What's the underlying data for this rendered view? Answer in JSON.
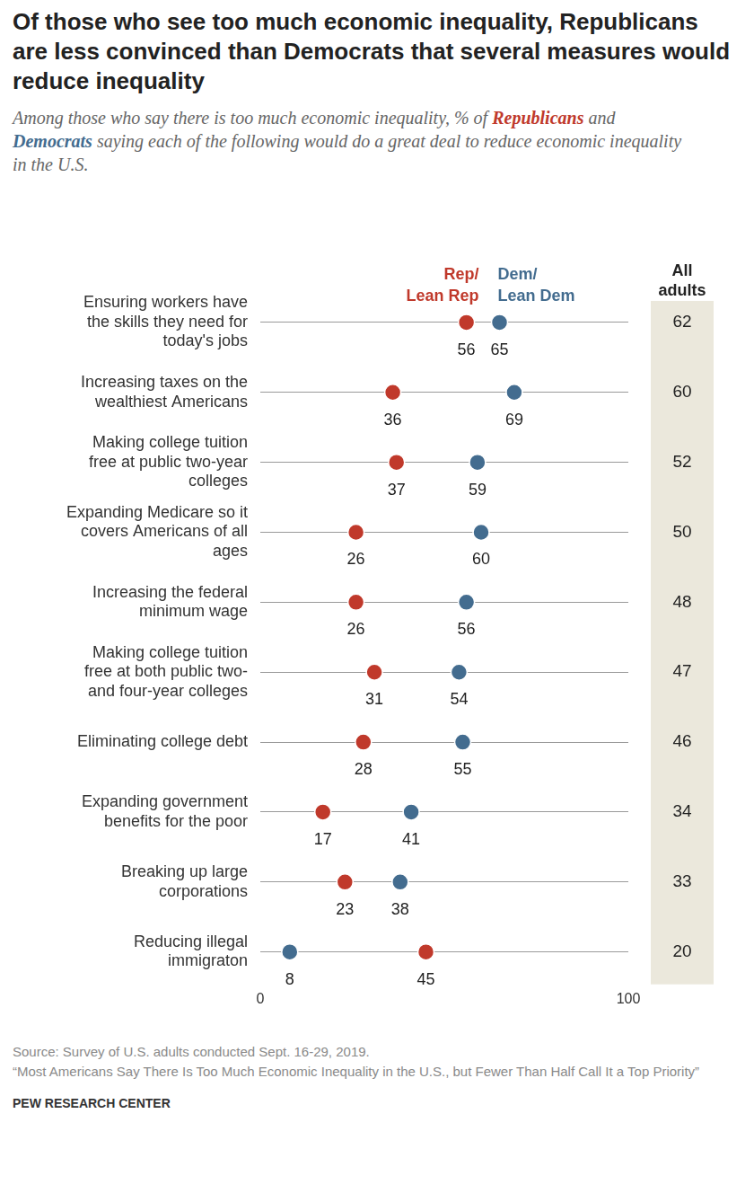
{
  "chart_data": {
    "type": "dot",
    "orientation": "horizontal",
    "title": "Of those who see too much economic inequality, Republicans are less convinced than Democrats that several measures would reduce inequality",
    "subtitle": [
      {
        "text": "Among those who say there is too much economic inequality, % of "
      },
      {
        "text": "Republicans",
        "color": "#c0392b"
      },
      {
        "text": " and "
      },
      {
        "text": "Democrats",
        "color": "#436c8f"
      },
      {
        "text": " saying each of the following would do a great deal to reduce economic inequality in the U.S."
      }
    ],
    "categories": [
      [
        "Ensuring workers have",
        "the skills they need for",
        "today's jobs"
      ],
      [
        "Increasing taxes on the",
        "wealthiest Americans"
      ],
      [
        "Making college tuition",
        "free at public two-year",
        "colleges"
      ],
      [
        "Expanding Medicare so it",
        "covers Americans of all",
        "ages"
      ],
      [
        "Increasing the federal",
        "minimum wage"
      ],
      [
        "Making college tuition",
        "free at both public two-",
        "and four-year colleges"
      ],
      [
        "Eliminating college debt"
      ],
      [
        "Expanding government",
        "benefits for the poor"
      ],
      [
        "Breaking up large",
        "corporations"
      ],
      [
        "Reducing illegal",
        "immigraton"
      ]
    ],
    "series": [
      {
        "name": "Rep/ Lean Rep",
        "color": "#c0392b",
        "values": [
          56,
          36,
          37,
          26,
          26,
          31,
          28,
          17,
          23,
          45
        ]
      },
      {
        "name": "Dem/ Lean Dem",
        "color": "#436c8f",
        "values": [
          65,
          69,
          59,
          60,
          56,
          54,
          55,
          41,
          38,
          8
        ]
      }
    ],
    "all_adults": {
      "label": "All adults",
      "values": [
        62,
        60,
        52,
        50,
        48,
        47,
        46,
        34,
        33,
        20
      ]
    },
    "xlim": [
      0,
      100
    ],
    "xticks": [
      0,
      100
    ],
    "grid": true,
    "data_labels": true,
    "legend": "top",
    "source": [
      "Source: Survey of U.S. adults conducted Sept. 16-29, 2019.",
      "“Most Americans Say There Is Too Much Economic Inequality in the U.S., but Fewer Than Half Call It a Top Priority”"
    ],
    "credit": "PEW RESEARCH CENTER"
  }
}
